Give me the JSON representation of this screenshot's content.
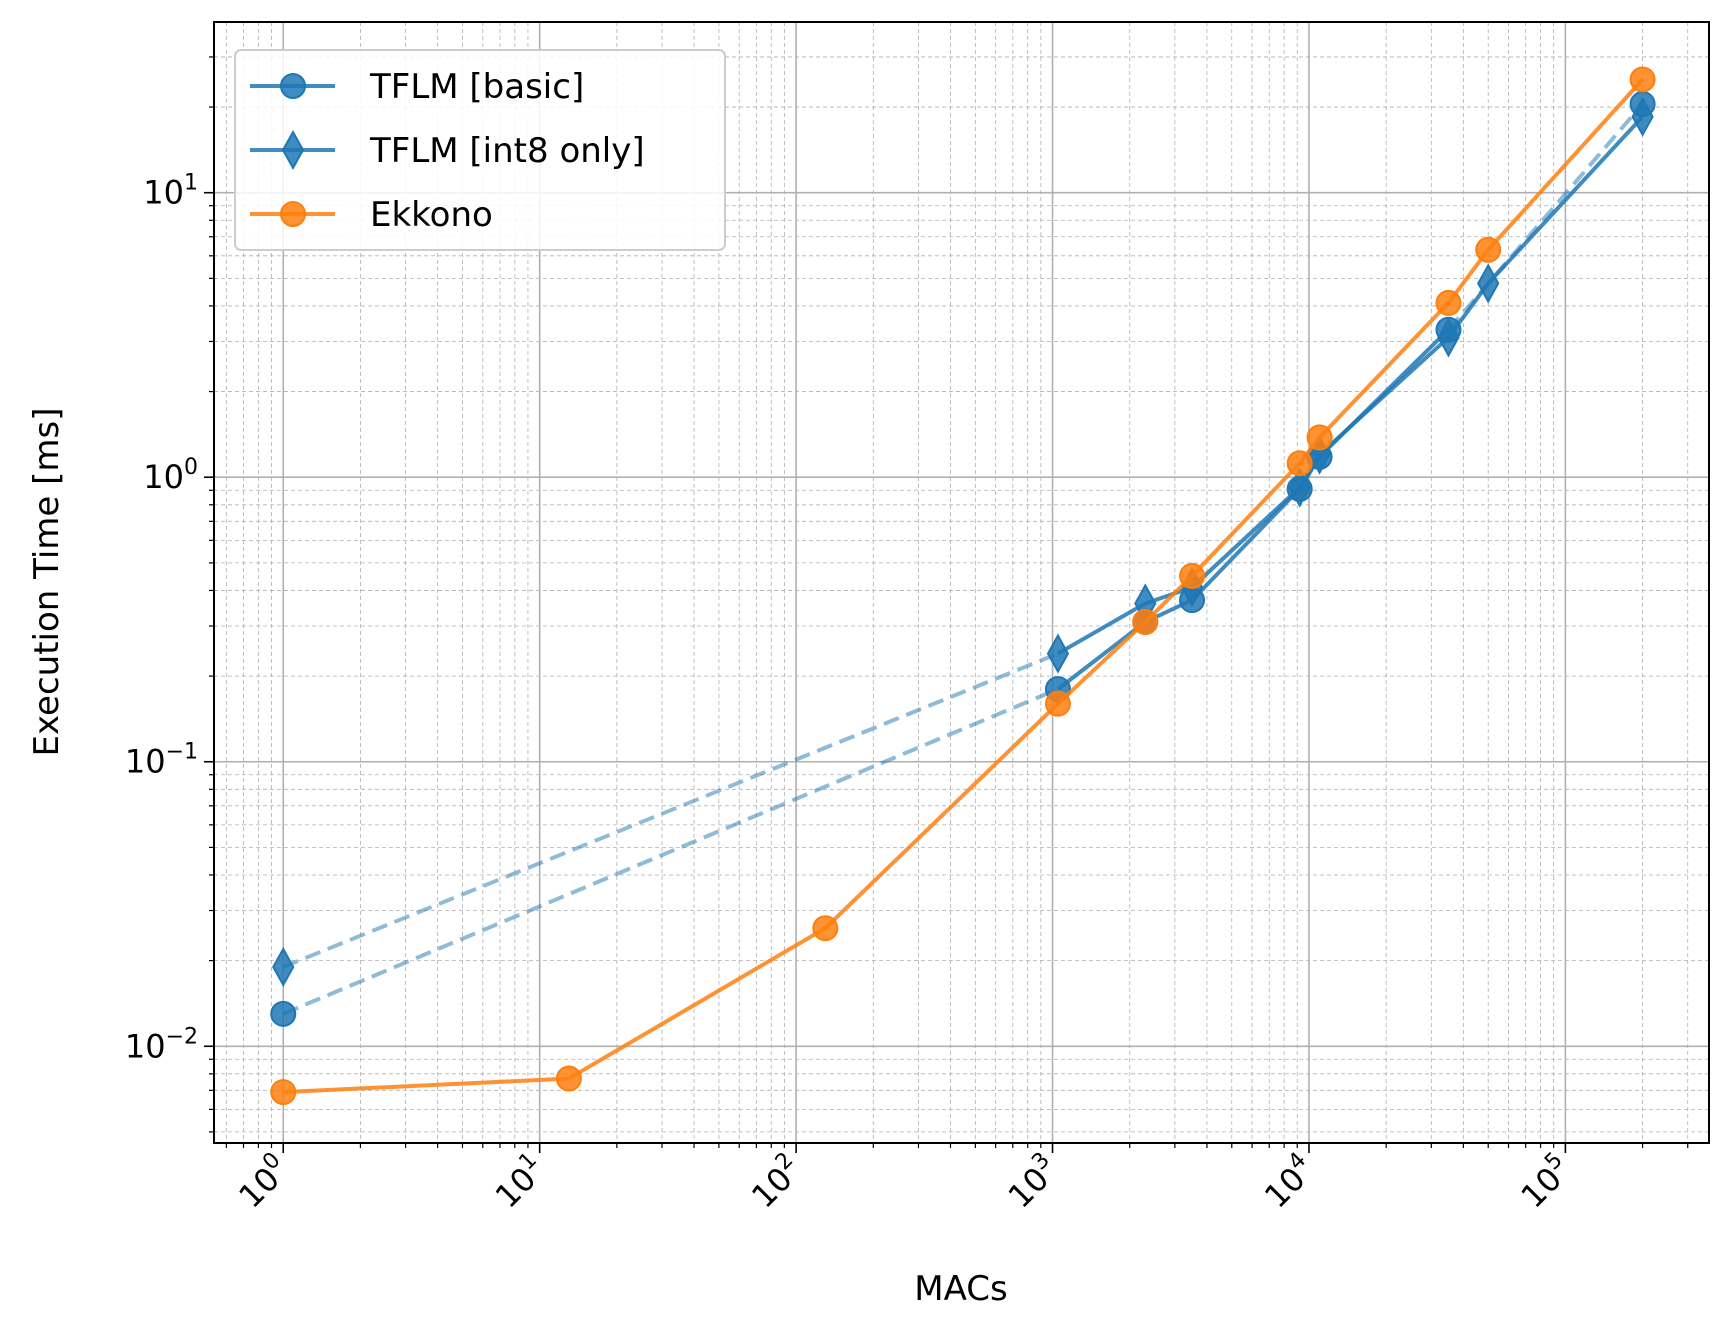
{
  "chart_data": {
    "type": "line",
    "title": "",
    "xlabel": "MACs",
    "ylabel": "Execution Time [ms]",
    "xscale": "log",
    "yscale": "log",
    "xlim_log10": [
      -0.27,
      5.56
    ],
    "ylim_log10": [
      -2.34,
      1.6
    ],
    "grid": "major and minor",
    "legend_position": "top-left",
    "x_ticks": [
      0,
      1,
      2,
      3,
      4,
      5
    ],
    "y_ticks": [
      -2,
      -1,
      0,
      1
    ],
    "series": [
      {
        "name": "TFLM [basic]",
        "color": "#1f77b4",
        "marker": "circle",
        "x": [
          1,
          1050,
          2300,
          3500,
          9200,
          11000,
          35000,
          200000
        ],
        "y": [
          0.013,
          0.18,
          0.31,
          0.37,
          0.91,
          1.18,
          3.3,
          20.5
        ],
        "dashed_segments": [
          0,
          6
        ]
      },
      {
        "name": "TFLM [int8 only]",
        "color": "#1f77b4",
        "marker": "diamond",
        "x": [
          1,
          1050,
          2300,
          3500,
          9200,
          11000,
          35000,
          50000,
          200000
        ],
        "y": [
          0.019,
          0.24,
          0.36,
          0.41,
          0.92,
          1.2,
          3.1,
          4.8,
          18.5
        ],
        "dashed_segments": [
          0
        ]
      },
      {
        "name": "Ekkono",
        "color": "#ff7f0e",
        "marker": "circle",
        "x": [
          1,
          13,
          130,
          1050,
          2300,
          3500,
          9200,
          11000,
          35000,
          50000,
          200000
        ],
        "y": [
          0.0069,
          0.0077,
          0.026,
          0.16,
          0.31,
          0.45,
          1.12,
          1.38,
          4.1,
          6.3,
          25
        ],
        "dashed_segments": []
      }
    ]
  }
}
